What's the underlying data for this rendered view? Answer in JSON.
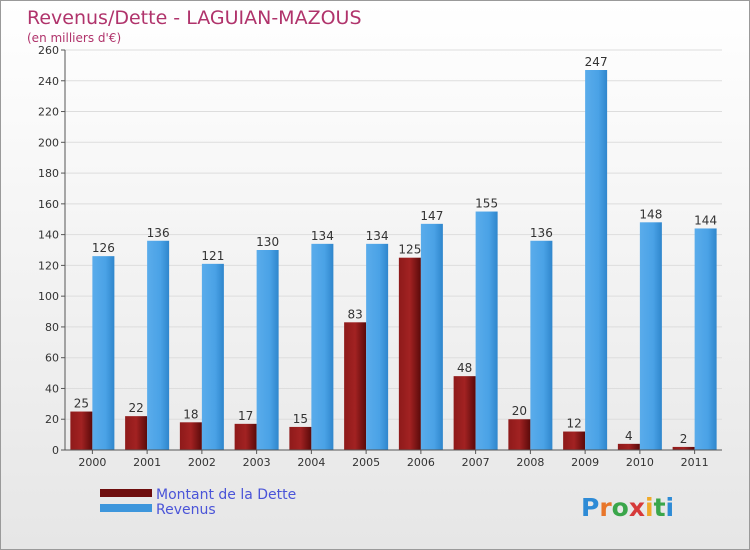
{
  "title": "Revenus/Dette - LAGUIAN-MAZOUS",
  "subtitle": "(en milliers d'€)",
  "logo_text": "Proxiti",
  "colors": {
    "title": "#b0336b",
    "legend_text": "#4a54d8",
    "dette": "#7a1212",
    "revenus": "#3d96dc",
    "grid": "#dddddd",
    "axis": "#555555",
    "frame_bg_top": "#ffffff",
    "frame_bg_bottom": "#e4e4e4"
  },
  "chart_data": {
    "type": "bar",
    "title": "Revenus/Dette - LAGUIAN-MAZOUS",
    "subtitle": "(en milliers d'€)",
    "categories": [
      "2000",
      "2001",
      "2002",
      "2003",
      "2004",
      "2005",
      "2006",
      "2007",
      "2008",
      "2009",
      "2010",
      "2011"
    ],
    "series": [
      {
        "name": "Montant de la Dette",
        "values": [
          25,
          22,
          18,
          17,
          15,
          83,
          125,
          48,
          20,
          12,
          4,
          2
        ]
      },
      {
        "name": "Revenus",
        "values": [
          126,
          136,
          121,
          130,
          134,
          134,
          147,
          155,
          136,
          247,
          148,
          144
        ]
      }
    ],
    "ylim": [
      0,
      260
    ],
    "yticks": [
      0,
      20,
      40,
      60,
      80,
      100,
      120,
      140,
      160,
      180,
      200,
      220,
      240,
      260
    ],
    "grid": true,
    "legend_position": "bottom-left"
  }
}
